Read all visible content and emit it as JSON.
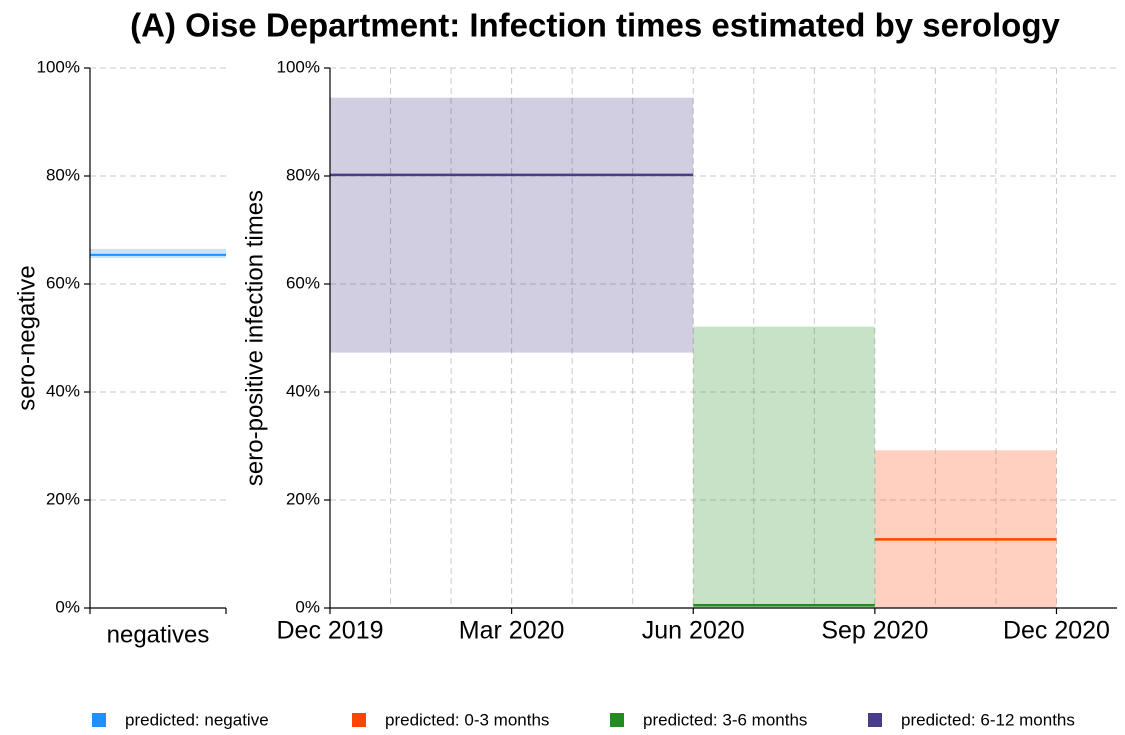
{
  "chart_data": [
    {
      "type": "interval",
      "ylabel": "sero-negative",
      "categories": [
        "negatives"
      ],
      "ylim": [
        0,
        100
      ],
      "yticks": [
        {
          "value": 0,
          "label": "0%"
        },
        {
          "value": 20,
          "label": "20%"
        },
        {
          "value": 40,
          "label": "40%"
        },
        {
          "value": 60,
          "label": "60%"
        },
        {
          "value": 80,
          "label": "80%"
        },
        {
          "value": 100,
          "label": "100%"
        }
      ],
      "grid": true,
      "series": [
        {
          "name": "predicted: negative",
          "color": "#1e90ff",
          "values": [
            65.4
          ],
          "lower": [
            64.8
          ],
          "upper": [
            66.5
          ]
        }
      ]
    },
    {
      "type": "interval-time",
      "title": "(A) Oise Department: Infection times estimated by serology",
      "ylabel": "sero-positive infection times",
      "xlim": [
        "2019-12",
        "2021-01"
      ],
      "xticks": [
        {
          "value": "2019-12",
          "label": "Dec 2019"
        },
        {
          "value": "2020-03",
          "label": "Mar 2020"
        },
        {
          "value": "2020-06",
          "label": "Jun 2020"
        },
        {
          "value": "2020-09",
          "label": "Sep 2020"
        },
        {
          "value": "2020-12",
          "label": "Dec 2020"
        }
      ],
      "ylim": [
        0,
        100
      ],
      "yticks": [
        {
          "value": 0,
          "label": "0%"
        },
        {
          "value": 20,
          "label": "20%"
        },
        {
          "value": 40,
          "label": "40%"
        },
        {
          "value": 60,
          "label": "60%"
        },
        {
          "value": 80,
          "label": "80%"
        },
        {
          "value": 100,
          "label": "100%"
        }
      ],
      "grid": true,
      "series": [
        {
          "name": "predicted: 0-3 months",
          "color": "#ff4500",
          "start": "2020-09",
          "end": "2020-12",
          "value": 12.7,
          "lower": 0,
          "upper": 29.2
        },
        {
          "name": "predicted: 3-6 months",
          "color": "#228b22",
          "start": "2020-06",
          "end": "2020-09",
          "value": 0.5,
          "lower": 0,
          "upper": 52.1
        },
        {
          "name": "predicted: 6-12 months",
          "color": "#483d8b",
          "start": "2019-12",
          "end": "2020-06",
          "value": 80.2,
          "lower": 47.3,
          "upper": 94.5
        }
      ]
    }
  ]
}
